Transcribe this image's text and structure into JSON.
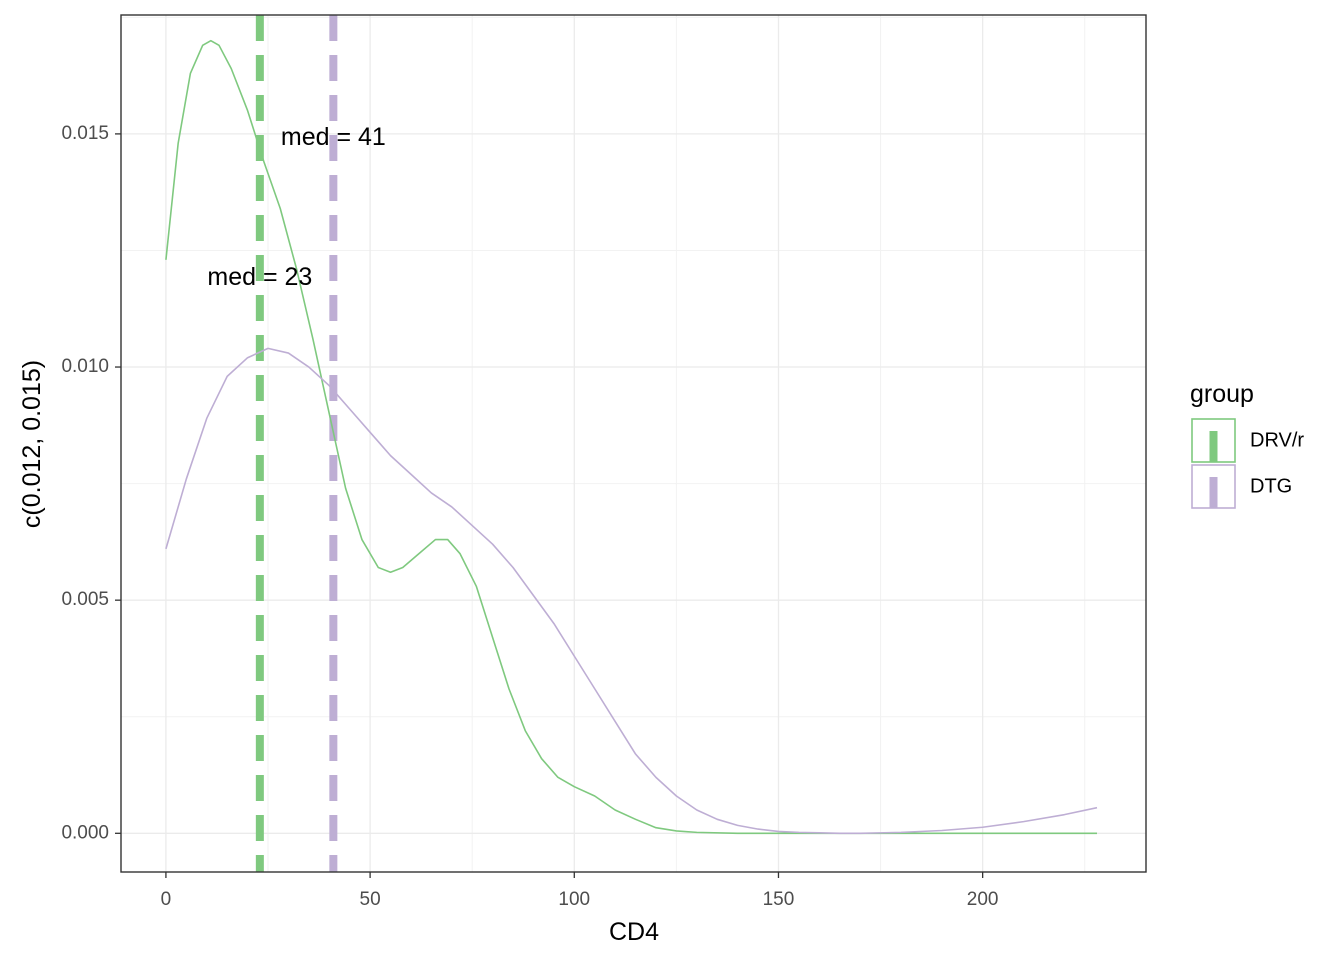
{
  "chart_data": {
    "type": "line",
    "title": "",
    "xlabel": "CD4",
    "ylabel": "c(0.012, 0.015)",
    "xlim": [
      -11,
      240
    ],
    "ylim": [
      -0.00083,
      0.01755
    ],
    "x_ticks": [
      0,
      50,
      100,
      150,
      200
    ],
    "x_tick_labels": [
      "0",
      "50",
      "100",
      "150",
      "200"
    ],
    "y_ticks": [
      0.0,
      0.005,
      0.01,
      0.015
    ],
    "y_tick_labels": [
      "0.000",
      "0.005",
      "0.010",
      "0.015"
    ],
    "grid": true,
    "legend": {
      "title": "group",
      "position": "right"
    },
    "series": [
      {
        "name": "DRV/r",
        "color": "#7fc97f",
        "x": [
          0,
          3,
          6,
          9,
          11,
          13,
          16,
          20,
          24,
          28,
          32,
          36,
          40,
          44,
          48,
          52,
          55,
          58,
          62,
          66,
          69,
          72,
          76,
          80,
          84,
          88,
          92,
          96,
          100,
          105,
          110,
          115,
          120,
          125,
          130,
          140,
          150,
          170,
          200,
          228
        ],
        "values": [
          0.0123,
          0.0148,
          0.0163,
          0.0169,
          0.017,
          0.0169,
          0.0164,
          0.0155,
          0.0144,
          0.0134,
          0.0121,
          0.0106,
          0.009,
          0.0074,
          0.0063,
          0.0057,
          0.0056,
          0.0057,
          0.006,
          0.0063,
          0.0063,
          0.006,
          0.0053,
          0.0042,
          0.0031,
          0.0022,
          0.0016,
          0.0012,
          0.001,
          0.0008,
          0.0005,
          0.0003,
          0.00012,
          5e-05,
          2e-05,
          0.0,
          0.0,
          0.0,
          0.0,
          0.0
        ]
      },
      {
        "name": "DTG",
        "color": "#beaed4",
        "x": [
          0,
          5,
          10,
          15,
          20,
          25,
          30,
          35,
          40,
          45,
          50,
          55,
          60,
          65,
          70,
          75,
          80,
          85,
          90,
          95,
          100,
          105,
          110,
          115,
          120,
          125,
          130,
          135,
          140,
          145,
          150,
          155,
          160,
          165,
          170,
          180,
          190,
          200,
          210,
          220,
          228
        ],
        "values": [
          0.0061,
          0.0076,
          0.0089,
          0.0098,
          0.0102,
          0.0104,
          0.0103,
          0.01,
          0.0096,
          0.0091,
          0.0086,
          0.0081,
          0.0077,
          0.0073,
          0.007,
          0.0066,
          0.0062,
          0.0057,
          0.0051,
          0.0045,
          0.0038,
          0.0031,
          0.0024,
          0.0017,
          0.0012,
          0.0008,
          0.0005,
          0.0003,
          0.00017,
          9e-05,
          4e-05,
          2e-05,
          1e-05,
          0.0,
          0.0,
          2e-05,
          6e-05,
          0.00013,
          0.00025,
          0.0004,
          0.00055
        ]
      }
    ],
    "vlines": [
      {
        "series": "DRV/r",
        "x": 23,
        "color": "#7fc97f",
        "style": "dashed"
      },
      {
        "series": "DTG",
        "x": 41,
        "color": "#beaed4",
        "style": "dashed"
      }
    ],
    "annotations": [
      {
        "text": "med = 41",
        "x": 41,
        "y": 0.0149
      },
      {
        "text": "med = 23",
        "x": 23,
        "y": 0.0119
      }
    ]
  }
}
